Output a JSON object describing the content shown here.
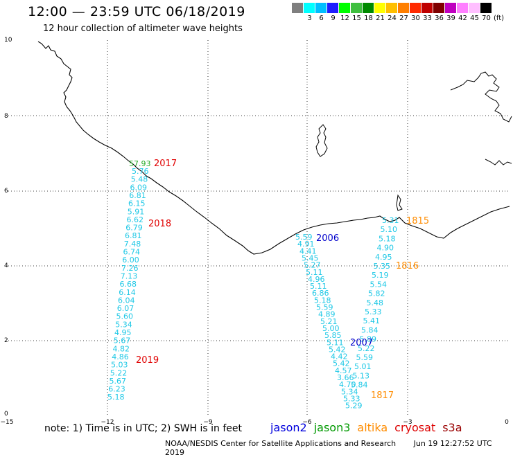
{
  "header": {
    "title": "12:00 — 23:59 UTC 06/18/2019",
    "subtitle": "12 hour collection of altimeter wave heights"
  },
  "legend": {
    "unit": "(ft)",
    "colors": [
      "#7f7f7f",
      "#00ffff",
      "#00bfff",
      "#1f1fff",
      "#00ff00",
      "#3fbf3f",
      "#008a00",
      "#ffff00",
      "#ffbf00",
      "#ff7f00",
      "#ff2a00",
      "#bf0000",
      "#7f0000",
      "#bf00bf",
      "#ff7fff",
      "#ffbfff",
      "#000000"
    ],
    "labels": [
      "",
      "3",
      "6",
      "9",
      "12",
      "15",
      "18",
      "21",
      "24",
      "27",
      "30",
      "33",
      "36",
      "39",
      "42",
      "45",
      "70"
    ]
  },
  "axes": {
    "x_ticks": [
      "−15",
      "−12",
      "−9",
      "−6",
      "−3",
      "0"
    ],
    "y_ticks": [
      "0",
      "2",
      "4",
      "6",
      "8",
      "10"
    ]
  },
  "passes": [
    {
      "label": "2017",
      "color": "#e00000"
    },
    {
      "label": "2018",
      "color": "#e00000"
    },
    {
      "label": "2019",
      "color": "#e00000"
    },
    {
      "label": "2006",
      "color": "#0000cc"
    },
    {
      "label": "2007",
      "color": "#0000cc"
    },
    {
      "label": "1815",
      "color": "#ff8c00"
    },
    {
      "label": "1816",
      "color": "#ff8c00"
    },
    {
      "label": "1817",
      "color": "#ff8c00"
    }
  ],
  "track_a": {
    "first": "57.93",
    "values": [
      "5.76",
      "5.48",
      "6.09",
      "6.81",
      "6.15",
      "5.91",
      "6.62",
      "6.79",
      "6.81",
      "7.48",
      "6.74",
      "6.00",
      "7.26",
      "7.13",
      "6.68",
      "6.14",
      "6.04",
      "6.07",
      "5.60",
      "5.34",
      "4.95",
      "5.67",
      "4.82",
      "4.86",
      "5.03",
      "5.22",
      "5.67",
      "6.23",
      "5.18"
    ]
  },
  "track_b": {
    "values": [
      "5.59",
      "4.91",
      "4.41",
      "5.45",
      "5.27",
      "5.11",
      "4.96",
      "5.11",
      "6.86",
      "5.18",
      "5.59",
      "4.89",
      "5.21",
      "5.00",
      "5.85",
      "5.11",
      "5.42",
      "4.42",
      "5.42",
      "4.57",
      "3.66",
      "4.70",
      "5.34",
      "5.33",
      "5.29"
    ]
  },
  "track_c": {
    "values": [
      "5.31",
      "5.10",
      "5.18",
      "4.90",
      "4.95",
      "5.35",
      "5.19",
      "5.54",
      "5.82",
      "5.48",
      "5.33",
      "5.41",
      "5.84",
      "5.89",
      "5.22",
      "5.59",
      "5.01",
      "5.13",
      "5.84"
    ]
  },
  "footer": {
    "note": "note: 1) Time is in UTC; 2) SWH is in feet",
    "satellites": [
      {
        "name": "jason2",
        "color": "#0000dd"
      },
      {
        "name": "jason3",
        "color": "#009900"
      },
      {
        "name": "altika",
        "color": "#ff8c00"
      },
      {
        "name": "cryosat",
        "color": "#dd0000"
      },
      {
        "name": "s3a",
        "color": "#990000"
      }
    ],
    "credit": "NOAA/NESDIS Center for Satellite Applications and Research",
    "timestamp": "Jun 19 12:27:52 UTC 2019"
  }
}
